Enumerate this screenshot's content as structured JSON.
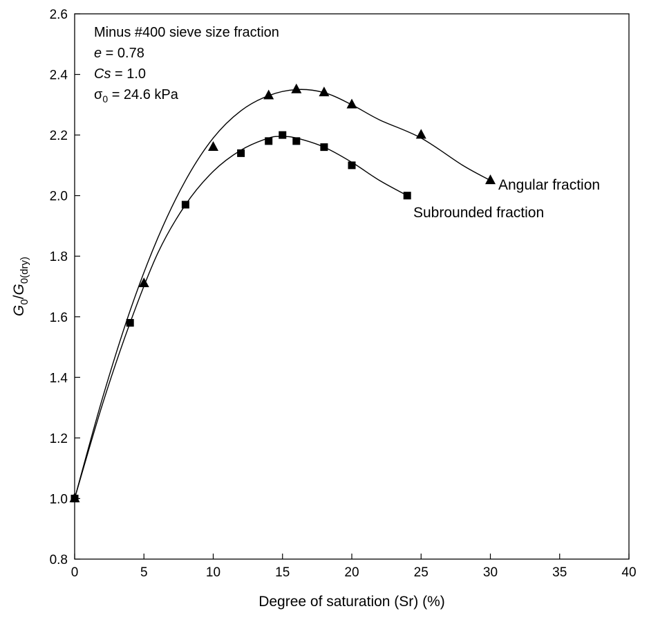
{
  "chart_data": {
    "type": "line",
    "title": "",
    "xlabel": "Degree of saturation (Sr) (%)",
    "ylabel": {
      "g1": "G",
      "s1": "0",
      "slash": "/",
      "g2": "G",
      "s2": "0(dry)"
    },
    "xlim": [
      0,
      40
    ],
    "ylim": [
      0.8,
      2.6
    ],
    "x_ticks": [
      0,
      5,
      10,
      15,
      20,
      25,
      30,
      35,
      40
    ],
    "y_ticks": [
      "0.8",
      "1.0",
      "1.2",
      "1.4",
      "1.6",
      "1.8",
      "2.0",
      "2.2",
      "2.4",
      "2.6"
    ],
    "grid": false,
    "annotations": {
      "line1": "Minus #400 sieve size fraction",
      "line2_var": "e",
      "line2_rest": " = 0.78",
      "line3_var": "Cs",
      "line3_rest": " = 1.0",
      "line4_sigma": "σ",
      "line4_sub": "0",
      "line4_rest": " = 24.6 kPa"
    },
    "series": [
      {
        "name": "Angular fraction",
        "marker": "triangle",
        "color": "#000000",
        "x": [
          0,
          5,
          10,
          14,
          16,
          18,
          20,
          25,
          30
        ],
        "y": [
          1.0,
          1.71,
          2.16,
          2.33,
          2.35,
          2.34,
          2.3,
          2.2,
          2.05
        ],
        "curve_x": [
          0,
          2,
          4,
          6,
          8,
          10,
          12,
          14,
          16,
          18,
          20,
          22,
          25,
          28,
          30
        ],
        "curve_y": [
          1.0,
          1.33,
          1.62,
          1.86,
          2.05,
          2.19,
          2.28,
          2.33,
          2.35,
          2.34,
          2.3,
          2.25,
          2.19,
          2.1,
          2.05
        ]
      },
      {
        "name": "Subrounded fraction",
        "marker": "square",
        "color": "#000000",
        "x": [
          0,
          4,
          8,
          12,
          14,
          15,
          16,
          18,
          20,
          24
        ],
        "y": [
          1.0,
          1.58,
          1.97,
          2.14,
          2.18,
          2.2,
          2.18,
          2.16,
          2.1,
          2.0
        ],
        "curve_x": [
          0,
          2,
          4,
          6,
          8,
          10,
          12,
          14,
          15,
          16,
          18,
          20,
          22,
          24
        ],
        "curve_y": [
          1.0,
          1.31,
          1.58,
          1.81,
          1.97,
          2.08,
          2.15,
          2.19,
          2.195,
          2.19,
          2.16,
          2.11,
          2.05,
          2.0
        ]
      }
    ]
  }
}
